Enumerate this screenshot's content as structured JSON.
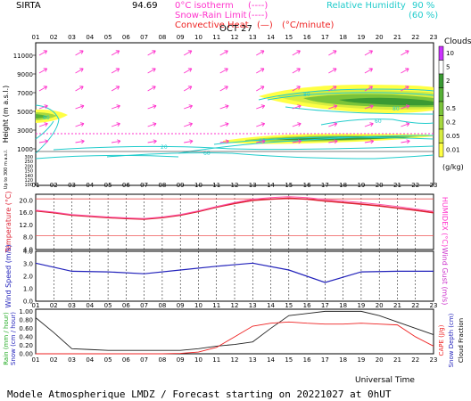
{
  "header": {
    "station": "SIRTA",
    "coord": "94.69",
    "legend_isotherm": "0°C isotherm",
    "legend_isotherm_mark": "(----)",
    "legend_snowrain": "Snow-Rain Limit",
    "legend_snowrain_mark": "(----)",
    "legend_convective": "Convective Heat",
    "legend_convective_mark": "(—)",
    "legend_convective_unit": "(°C/minute)",
    "legend_rh": "Relative Humidity",
    "legend_rh_90": "90 %",
    "legend_rh_80": "(60 %)"
  },
  "hours": [
    "01",
    "02",
    "03",
    "04",
    "05",
    "06",
    "07",
    "08",
    "09",
    "10",
    "11",
    "12",
    "13",
    "14",
    "15",
    "16",
    "17",
    "18",
    "19",
    "20",
    "21",
    "22",
    "23"
  ],
  "date_label": "OCT 27",
  "footer": {
    "universal_time": "Universal Time",
    "bottom_text": "Modele Atmospherique LMDZ / Forecast starting on 20221027 at 0hUT"
  },
  "clouds_legend": {
    "title": "Clouds",
    "unit": "(g/kg)",
    "levels": [
      "10",
      "5",
      "2",
      "1",
      "0.5",
      "0.2",
      "0.05",
      "0.01"
    ],
    "colors": [
      "#cc33ff",
      "#ffffff",
      "#3a9a33",
      "#56b036",
      "#7ac43a",
      "#a6d83e",
      "#d6ec40",
      "#ffff44"
    ]
  },
  "colors": {
    "magenta": "#ff33cc",
    "cyan": "#22cccc",
    "temp_red": "#dd2233",
    "wind_blue": "#2222bb",
    "rain_red": "#ee2222",
    "frame": "#000000"
  },
  "chart_data": [
    {
      "type": "area",
      "panel": "clouds",
      "ylabel": "Height (m a.s.l.)",
      "ylabel_lower": "Up to 300 m a.s.l.",
      "yticks_upper": [
        "11000",
        "9000",
        "7000",
        "5000",
        "3000",
        "1000"
      ],
      "yticks_lower": [
        "300",
        "250",
        "200",
        "150",
        "140",
        "120",
        "100"
      ],
      "isotherm_height_m": 2700,
      "rh_contour_labels": [
        "80",
        "80",
        "60",
        "20",
        "60",
        "60",
        "80"
      ]
    },
    {
      "type": "line",
      "panel": "temperature",
      "ylabel": "Temperature (°C)",
      "ylabel_right": "HUMIDEX (°C)",
      "yticks": [
        "20.0",
        "16.0",
        "12.0",
        "8.0",
        "4.0"
      ],
      "ylim": [
        4,
        22
      ],
      "x": [
        1,
        2,
        3,
        4,
        5,
        6,
        7,
        8,
        9,
        10,
        11,
        12,
        13,
        14,
        15,
        16,
        17,
        18,
        19,
        20,
        21,
        22,
        23
      ],
      "series": [
        {
          "values": [
            16.6,
            16.0,
            15.2,
            14.8,
            14.4,
            14.1,
            13.9,
            14.4,
            15.2,
            16.4,
            17.8,
            19.0,
            20.0,
            20.4,
            20.7,
            20.4,
            19.8,
            19.3,
            18.8,
            18.2,
            17.5,
            16.8,
            16.0
          ]
        },
        {
          "values": [
            16.8,
            16.2,
            15.4,
            15.0,
            14.6,
            14.3,
            14.1,
            14.6,
            15.4,
            16.6,
            18.0,
            19.3,
            20.4,
            20.9,
            21.2,
            20.9,
            20.3,
            19.8,
            19.3,
            18.7,
            18.0,
            17.2,
            16.4
          ]
        }
      ],
      "reference_lines": [
        20.5,
        8.5
      ]
    },
    {
      "type": "line",
      "panel": "wind",
      "ylabel": "Wind Speed (m/s)",
      "ylabel_right": "Wind Gust (m/s)",
      "yticks": [
        "4.0",
        "3.0",
        "2.0",
        "1.0",
        "0.0"
      ],
      "ylim": [
        0,
        4
      ],
      "x": [
        1,
        3,
        5,
        7,
        9,
        11,
        13,
        15,
        17,
        19,
        21,
        23
      ],
      "series": [
        {
          "values": [
            3.05,
            2.4,
            2.35,
            2.2,
            2.5,
            2.8,
            3.05,
            2.5,
            1.5,
            2.35,
            2.4,
            2.4
          ]
        }
      ]
    },
    {
      "type": "line",
      "panel": "precipitation",
      "ylabel": "Rain (mm / hour)",
      "ylabel2": "Snow (cm / hour)",
      "ylabel_right": "CAPE (J/g)",
      "ylabel_right2": "Snow Depth (cm)",
      "ylabel_right3": "Cloud Fraction",
      "yticks": [
        "1.00",
        "0.80",
        "0.60",
        "0.40",
        "0.20",
        "0.00"
      ],
      "ylim": [
        0,
        1.05
      ],
      "x": [
        1,
        2,
        3,
        4,
        5,
        6,
        7,
        8,
        9,
        10,
        11,
        12,
        13,
        14,
        15,
        16,
        17,
        18,
        19,
        20,
        21,
        22,
        23
      ],
      "series": [
        {
          "values": [
            0.85,
            0.5,
            0.12,
            0.1,
            0.08,
            0.08,
            0.08,
            0.08,
            0.08,
            0.12,
            0.18,
            0.22,
            0.28,
            0.6,
            0.9,
            0.95,
            1.0,
            1.0,
            1.0,
            0.9,
            0.75,
            0.6,
            0.45
          ]
        },
        {
          "values": [
            0.0,
            0.0,
            0.0,
            0.0,
            0.0,
            0.0,
            0.0,
            0.0,
            0.01,
            0.04,
            0.15,
            0.4,
            0.65,
            0.72,
            0.75,
            0.72,
            0.7,
            0.7,
            0.72,
            0.7,
            0.68,
            0.4,
            0.18
          ]
        }
      ]
    }
  ]
}
